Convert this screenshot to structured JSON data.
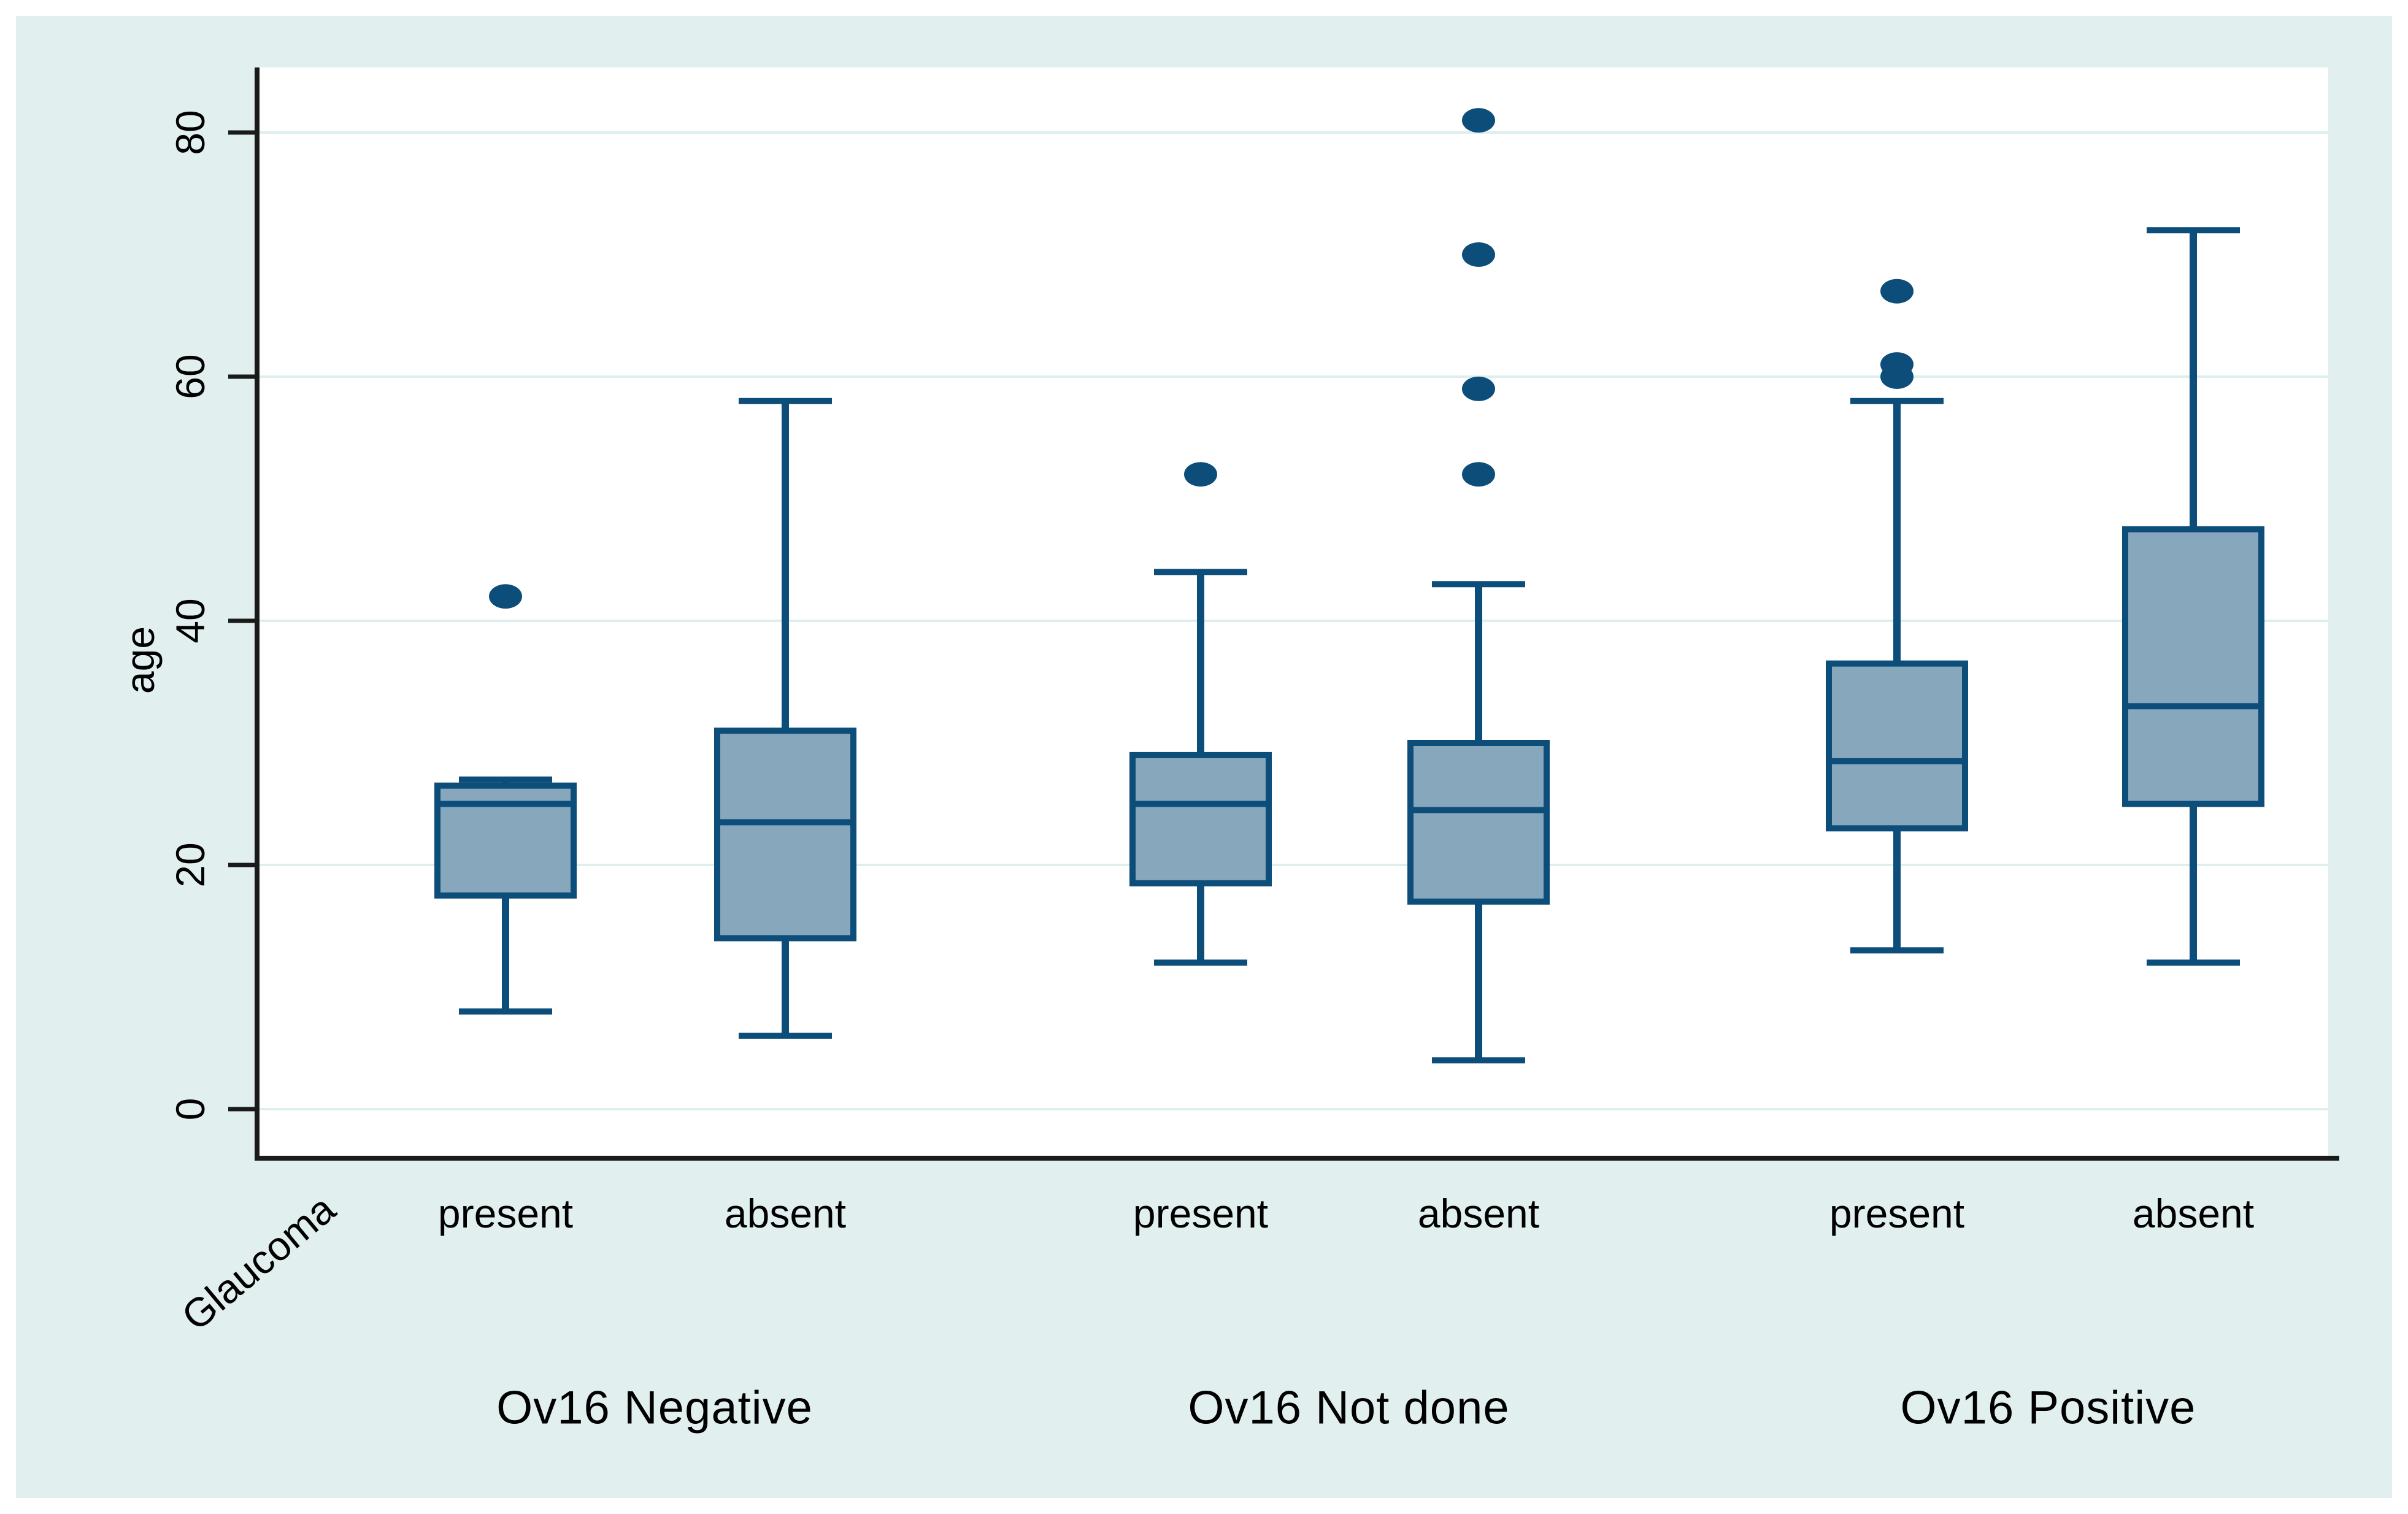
{
  "chart_data": {
    "type": "box",
    "title": "",
    "ylabel": "age",
    "xlabel": "Glaucoma",
    "y_ticks": [
      0,
      20,
      40,
      60,
      80
    ],
    "ylim": [
      -4,
      85
    ],
    "grid": "horizontal",
    "legend": "none",
    "category_labels": [
      "present",
      "absent"
    ],
    "groups": [
      {
        "label": "Ov16 Negative",
        "boxes": [
          {
            "category": "present",
            "whisker_low": 8,
            "q1": 17.5,
            "median": 25,
            "q3": 26.5,
            "whisker_high": 27,
            "outliers": [
              42
            ]
          },
          {
            "category": "absent",
            "whisker_low": 6,
            "q1": 14,
            "median": 23.5,
            "q3": 31,
            "whisker_high": 58,
            "outliers": []
          }
        ]
      },
      {
        "label": "Ov16 Not done",
        "boxes": [
          {
            "category": "present",
            "whisker_low": 12,
            "q1": 18.5,
            "median": 25,
            "q3": 29,
            "whisker_high": 44,
            "outliers": [
              52
            ]
          },
          {
            "category": "absent",
            "whisker_low": 4,
            "q1": 17,
            "median": 24.5,
            "q3": 30,
            "whisker_high": 43,
            "outliers": [
              52,
              59,
              70,
              81
            ]
          }
        ]
      },
      {
        "label": "Ov16 Positive",
        "boxes": [
          {
            "category": "present",
            "whisker_low": 13,
            "q1": 23,
            "median": 28.5,
            "q3": 36.5,
            "whisker_high": 58,
            "outliers": [
              60,
              61,
              67
            ]
          },
          {
            "category": "absent",
            "whisker_low": 12,
            "q1": 25,
            "median": 33,
            "q3": 47.5,
            "whisker_high": 72,
            "outliers": []
          }
        ]
      }
    ],
    "colors": {
      "background": "#e2efef",
      "plot_background": "#ffffff",
      "gridline": "#ddeeee",
      "axis": "#1a1a1a",
      "box_fill": "#87a7bd",
      "box_border": "#0d4d7a",
      "outlier": "#0d4d7a",
      "text": "#000000"
    }
  }
}
